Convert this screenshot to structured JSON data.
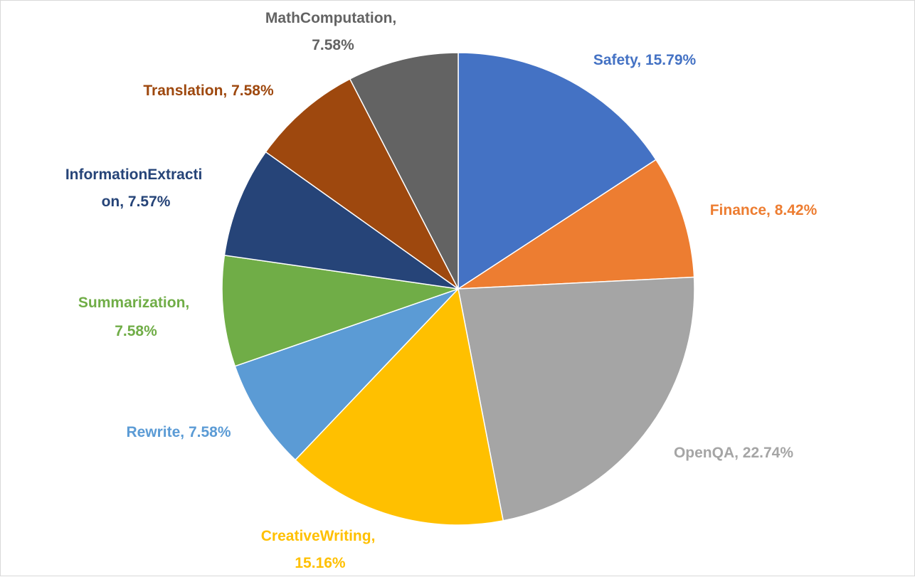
{
  "chart_data": {
    "type": "pie",
    "title": "",
    "slices": [
      {
        "label": "Safety",
        "value": 15.79,
        "text": "Safety, 15.79%",
        "color": "#4472C4"
      },
      {
        "label": "Finance",
        "value": 8.42,
        "text": "Finance, 8.42%",
        "color": "#ED7D31"
      },
      {
        "label": "OpenQA",
        "value": 22.74,
        "text": "OpenQA, 22.74%",
        "color": "#A5A5A5"
      },
      {
        "label": "CreativeWriting",
        "value": 15.16,
        "lines": [
          "CreativeWriting,",
          "15.16%"
        ],
        "color": "#FFC000"
      },
      {
        "label": "Rewrite",
        "value": 7.58,
        "text": "Rewrite, 7.58%",
        "color": "#5B9BD5"
      },
      {
        "label": "Summarization",
        "value": 7.58,
        "lines": [
          "Summarization,",
          "7.58%"
        ],
        "color": "#70AD47"
      },
      {
        "label": "InformationExtraction",
        "value": 7.57,
        "lines": [
          "InformationExtracti",
          "on, 7.57%"
        ],
        "color": "#264478"
      },
      {
        "label": "Translation",
        "value": 7.58,
        "text": "Translation, 7.58%",
        "color": "#9E480E"
      },
      {
        "label": "MathComputation",
        "value": 7.58,
        "lines": [
          "MathComputation,",
          "7.58%"
        ],
        "color": "#636363"
      }
    ]
  }
}
